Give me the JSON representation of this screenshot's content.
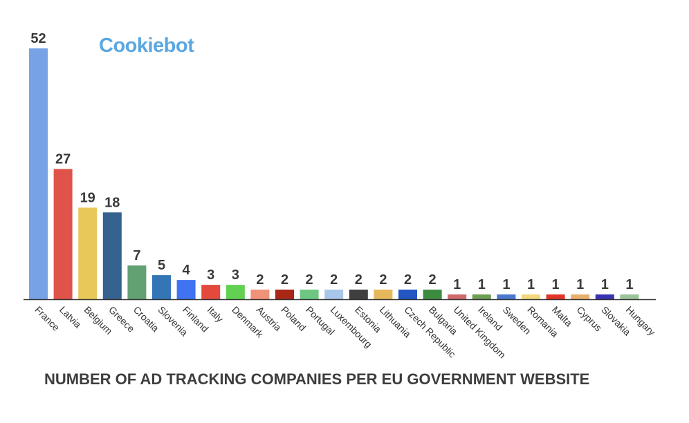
{
  "logo": {
    "text": "Cookiebot",
    "color": "#5aa7e0"
  },
  "chart_data": {
    "type": "bar",
    "title": "NUMBER OF AD TRACKING COMPANIES PER EU GOVERNMENT WEBSITE",
    "xlabel": "",
    "ylabel": "",
    "ylim": [
      0,
      52
    ],
    "grid": false,
    "legend": "none",
    "categories": [
      "France",
      "Latvia",
      "Belgium",
      "Greece",
      "Croatia",
      "Slovenia",
      "Finland",
      "Italy",
      "Denmark",
      "Austria",
      "Poland",
      "Portugal",
      "Luxembourg",
      "Estonia",
      "Lithuania",
      "Czech Republic",
      "Bulgaria",
      "United Kingdom",
      "Ireland",
      "Sweden",
      "Romania",
      "Malta",
      "Cyprus",
      "Slovakia",
      "Hungary"
    ],
    "values": [
      52,
      27,
      19,
      18,
      7,
      5,
      4,
      3,
      3,
      2,
      2,
      2,
      2,
      2,
      2,
      2,
      2,
      1,
      1,
      1,
      1,
      1,
      1,
      1,
      1
    ],
    "colors": [
      "#78a2e6",
      "#e0534a",
      "#e9c85a",
      "#35628f",
      "#62a172",
      "#3475b6",
      "#3f73f2",
      "#e34a3c",
      "#62d152",
      "#f09278",
      "#a82717",
      "#6ec683",
      "#a8c5ea",
      "#3f3f3f",
      "#e6b85c",
      "#2356c3",
      "#3c8c3f",
      "#cf6a6a",
      "#6d9e56",
      "#4c77cf",
      "#f3d77d",
      "#e2342a",
      "#e8b06a",
      "#3a33b0",
      "#9ac49a"
    ]
  }
}
